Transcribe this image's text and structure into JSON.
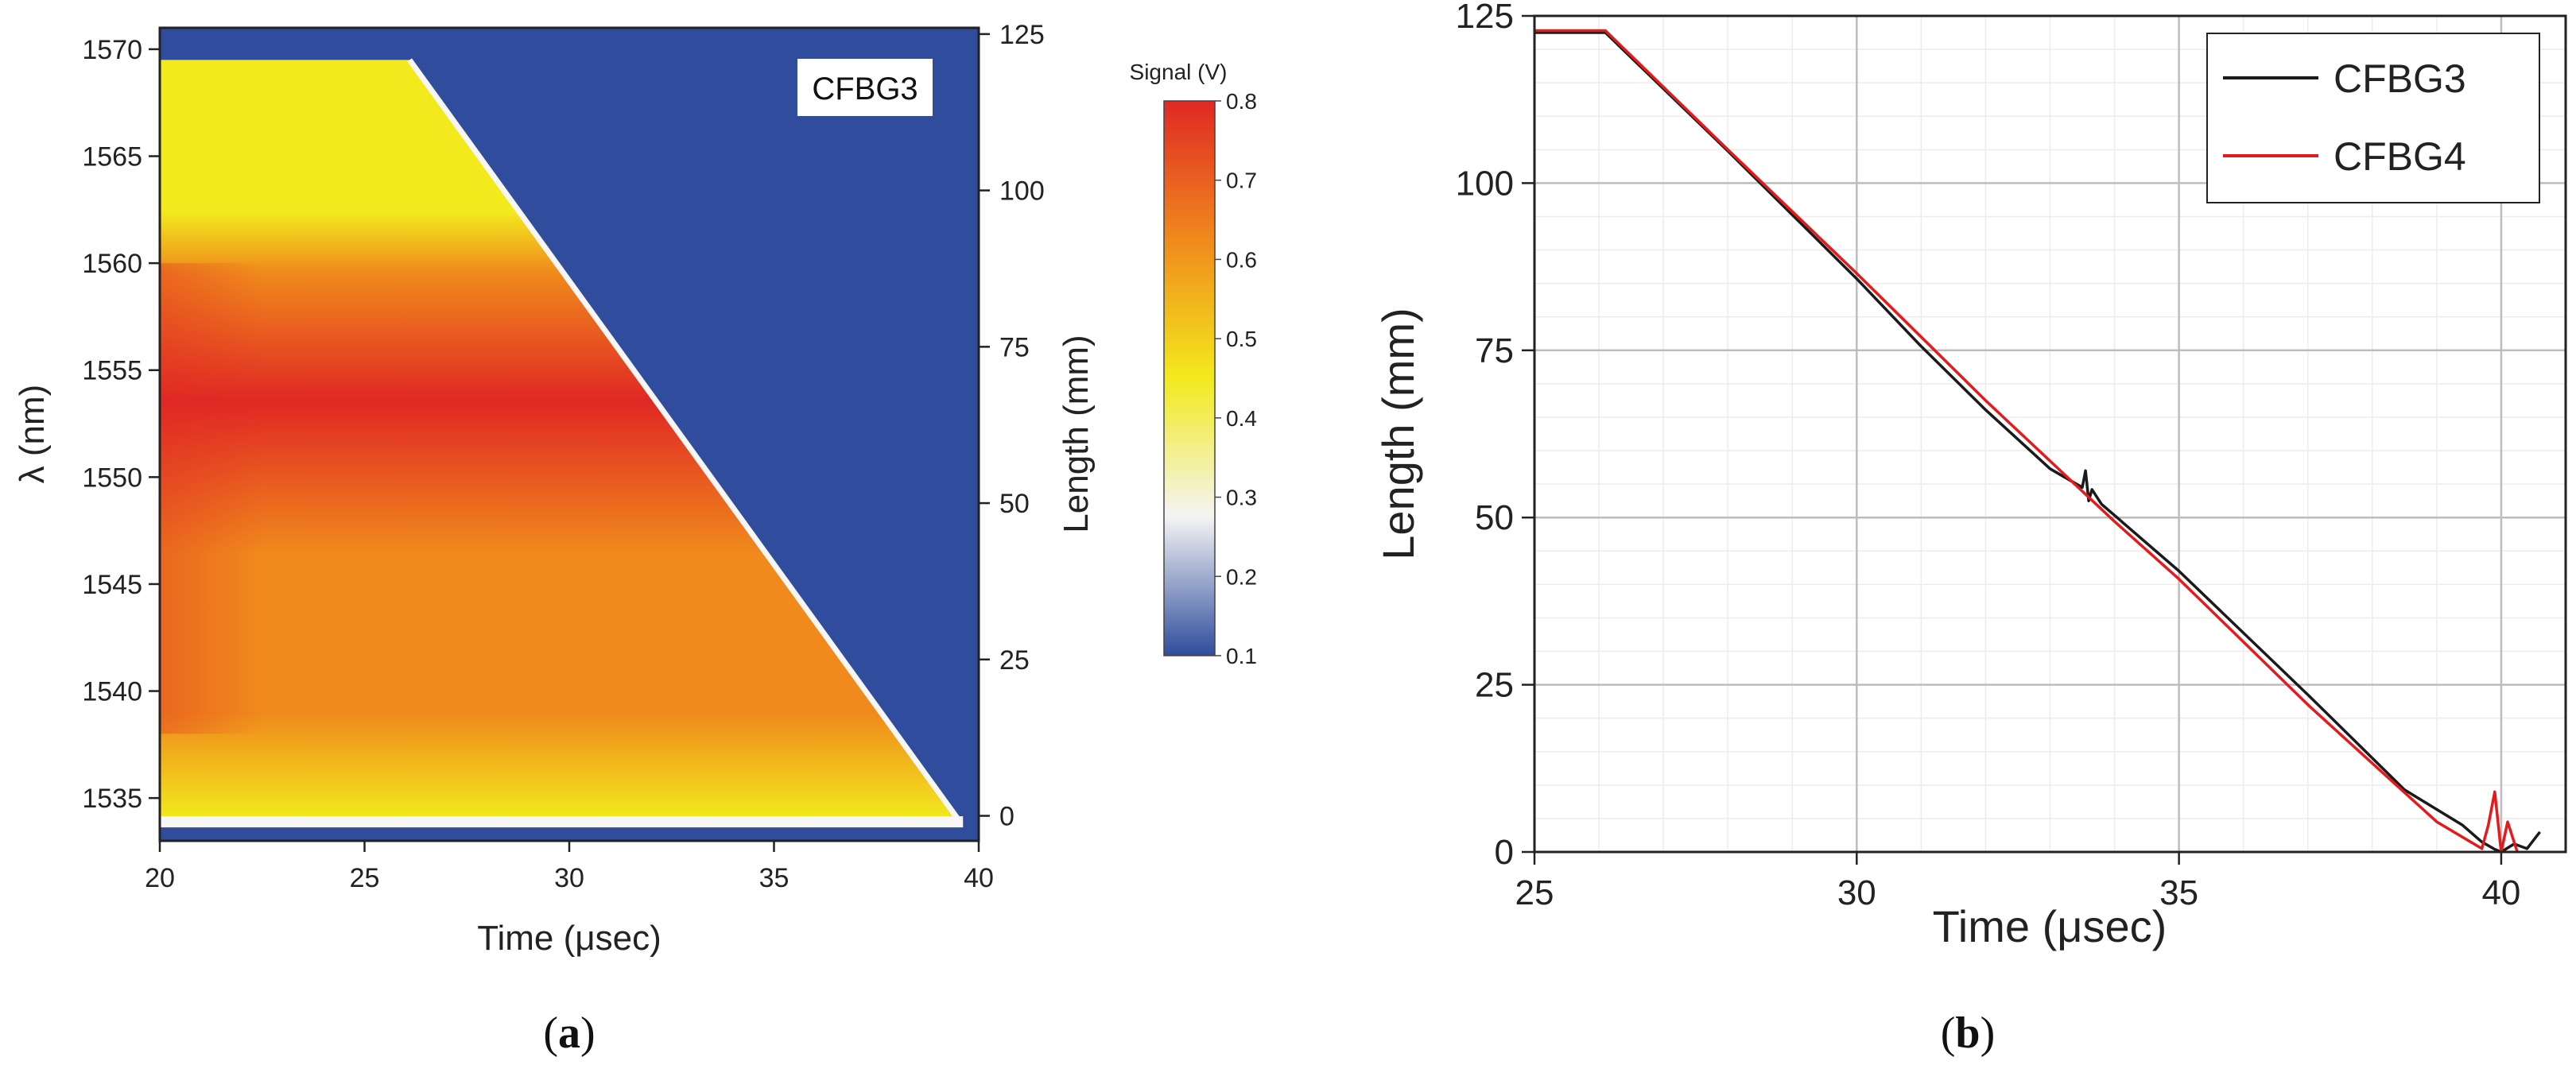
{
  "chart_data": [
    {
      "type": "heatmap",
      "panel": "a",
      "caption_left": "(",
      "caption_letter": "a",
      "caption_right": ")",
      "annotation": "CFBG3",
      "xlabel": "Time (μsec)",
      "ylabel_left": "λ (nm)",
      "ylabel_right": "Length (mm)",
      "xlim": [
        20,
        40
      ],
      "ylim_left": [
        1533,
        1571
      ],
      "ylim_right": [
        -4,
        126
      ],
      "xticks": [
        "20",
        "25",
        "30",
        "35",
        "40"
      ],
      "xtick_values": [
        20,
        25,
        30,
        35,
        40
      ],
      "yticks_left": [
        "1535",
        "1540",
        "1545",
        "1550",
        "1555",
        "1560",
        "1565",
        "1570"
      ],
      "ytick_values_left": [
        1535,
        1540,
        1545,
        1550,
        1555,
        1560,
        1565,
        1570
      ],
      "yticks_right": [
        "0",
        "25",
        "50",
        "75",
        "100",
        "125"
      ],
      "ytick_values_right": [
        0,
        25,
        50,
        75,
        100,
        125
      ],
      "front_points": [
        [
          26.1,
          1569.5
        ],
        [
          39.5,
          1534
        ]
      ],
      "grating_band": [
        1534,
        1569.5
      ],
      "colorbar": {
        "title": "Signal (V)",
        "range": [
          0.1,
          0.8
        ],
        "ticks": [
          "0.1",
          "0.2",
          "0.3",
          "0.4",
          "0.5",
          "0.6",
          "0.7",
          "0.8"
        ],
        "tick_values": [
          0.1,
          0.2,
          0.3,
          0.4,
          0.5,
          0.6,
          0.7,
          0.8
        ],
        "colors": [
          "#2f4d9c",
          "#f4f4f4",
          "#f2ea1d",
          "#f08a1c",
          "#e02824"
        ]
      }
    },
    {
      "type": "line",
      "panel": "b",
      "caption_left": "(",
      "caption_letter": "b",
      "caption_right": ")",
      "xlabel": "Time (μsec)",
      "ylabel": "Length (mm)",
      "xlim": [
        25,
        41
      ],
      "ylim": [
        0,
        125
      ],
      "xticks": [
        "25",
        "30",
        "35",
        "40"
      ],
      "xtick_values": [
        25,
        30,
        35,
        40
      ],
      "yticks": [
        "0",
        "25",
        "50",
        "75",
        "100",
        "125"
      ],
      "ytick_values": [
        0,
        25,
        50,
        75,
        100,
        125
      ],
      "legend_position": "top-right",
      "series": [
        {
          "name": "CFBG3",
          "color": "#1a1a1a",
          "x": [
            25.0,
            26.1,
            28.0,
            30.0,
            31.0,
            32.0,
            33.0,
            33.5,
            33.55,
            33.6,
            33.65,
            33.8,
            35.0,
            37.0,
            38.5,
            39.4,
            39.7,
            39.9,
            40.0,
            40.2,
            40.4,
            40.6
          ],
          "y": [
            122.5,
            122.5,
            104.8,
            85.7,
            75.6,
            66.1,
            57.3,
            54.5,
            57.0,
            52.5,
            54.2,
            52.0,
            42.0,
            23.5,
            9.3,
            4.0,
            1.5,
            0.4,
            0.0,
            1.2,
            0.5,
            3.0
          ]
        },
        {
          "name": "CFBG4",
          "color": "#e41a1c",
          "x": [
            25.0,
            26.1,
            28.0,
            30.0,
            32.0,
            34.0,
            35.0,
            37.0,
            39.0,
            39.7,
            39.8,
            39.9,
            40.0,
            40.1,
            40.25
          ],
          "y": [
            122.8,
            122.8,
            105.0,
            86.5,
            67.5,
            49.4,
            40.8,
            22.0,
            4.5,
            0.5,
            4.0,
            9.0,
            0.0,
            4.5,
            0.0
          ]
        }
      ]
    }
  ]
}
